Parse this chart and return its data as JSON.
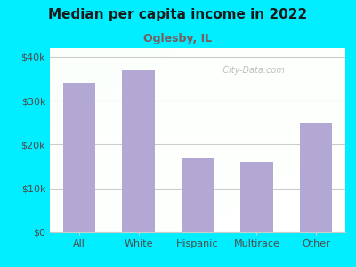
{
  "title": "Median per capita income in 2022",
  "subtitle": "Oglesby, IL",
  "categories": [
    "All",
    "White",
    "Hispanic",
    "Multirace",
    "Other"
  ],
  "values": [
    34000,
    37000,
    17000,
    16000,
    25000
  ],
  "bar_color": "#b3a8d4",
  "background_outer": "#00eeff",
  "title_color": "#1a1a1a",
  "subtitle_color": "#7a5c5c",
  "tick_label_color": "#4a4a4a",
  "grid_color": "#cccccc",
  "yticks": [
    0,
    10000,
    20000,
    30000,
    40000
  ],
  "ytick_labels": [
    "$0",
    "$10k",
    "$20k",
    "$30k",
    "$40k"
  ],
  "ylim": [
    0,
    42000
  ],
  "watermark": "City-Data.com"
}
